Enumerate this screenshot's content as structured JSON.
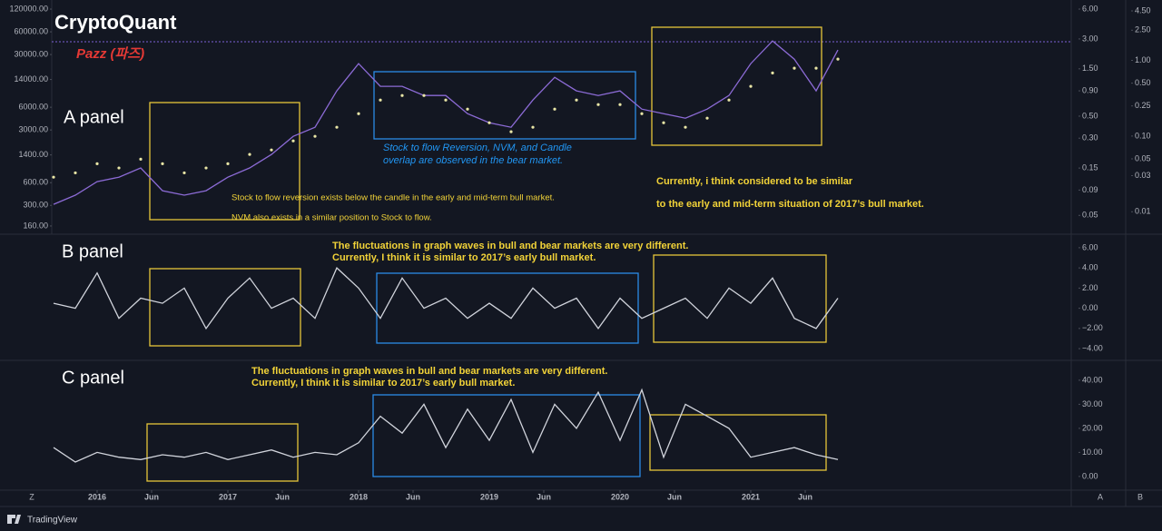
{
  "header": {
    "brand": "CryptoQuant",
    "author": "Pazz (파즈)"
  },
  "chart_data": [
    {
      "type": "line",
      "title": "A panel",
      "log_scale": true,
      "grid": false,
      "y_axis_position": "left",
      "x": [
        "2015-09",
        "2015-11",
        "2016-01",
        "2016-03",
        "2016-05",
        "2016-07",
        "2016-09",
        "2016-11",
        "2017-01",
        "2017-03",
        "2017-05",
        "2017-07",
        "2017-09",
        "2017-11",
        "2018-01",
        "2018-03",
        "2018-05",
        "2018-07",
        "2018-09",
        "2018-11",
        "2019-01",
        "2019-03",
        "2019-05",
        "2019-07",
        "2019-09",
        "2019-11",
        "2020-01",
        "2020-03",
        "2020-05",
        "2020-07",
        "2020-09",
        "2020-11",
        "2021-01",
        "2021-03",
        "2021-05",
        "2021-07",
        "2021-09"
      ],
      "xlim": [
        "2015-09",
        "2023-06"
      ],
      "series": [
        {
          "color": "#8c6bd6",
          "style": "line",
          "values": [
            310,
            410,
            620,
            710,
            940,
            470,
            410,
            470,
            710,
            940,
            1420,
            2470,
            3260,
            9890,
            22700,
            11350,
            11350,
            8590,
            8590,
            4930,
            3740,
            3260,
            7480,
            14960,
            9890,
            8590,
            9890,
            5670,
            4930,
            4300,
            5670,
            8590,
            22700,
            45400,
            26060,
            9890,
            34400
          ]
        },
        {
          "color": "#e9e6a6",
          "style": "dots",
          "values": [
            710,
            810,
            1070,
            940,
            1230,
            1070,
            810,
            940,
            1070,
            1420,
            1630,
            2150,
            2470,
            3260,
            4930,
            7480,
            8590,
            8590,
            7480,
            5670,
            3740,
            2840,
            3260,
            5670,
            7480,
            6510,
            6510,
            4930,
            3740,
            3260,
            4300,
            7480,
            11350,
            17100,
            19750,
            19750,
            26060
          ]
        }
      ],
      "ylim": [
        128,
        138000
      ],
      "yticks": [
        {
          "value": 120000,
          "label": "120000.00"
        },
        {
          "value": 60000,
          "label": "60000.00"
        },
        {
          "value": 30000,
          "label": "30000.00"
        },
        {
          "value": 14000,
          "label": "14000.00"
        },
        {
          "value": 6000,
          "label": "6000.00"
        },
        {
          "value": 3000,
          "label": "3000.00"
        },
        {
          "value": 1400,
          "label": "1400.00"
        },
        {
          "value": 600,
          "label": "600.00"
        },
        {
          "value": 300,
          "label": "300.00"
        },
        {
          "value": 160,
          "label": "160.00"
        }
      ],
      "y2lim": [
        0.033,
        6.67
      ],
      "y2ticks": [
        {
          "value": 6,
          "label": "6.00"
        },
        {
          "value": 3,
          "label": "3.00"
        },
        {
          "value": 1.5,
          "label": "1.50"
        },
        {
          "value": 0.9,
          "label": "0.90"
        },
        {
          "value": 0.5,
          "label": "0.50"
        },
        {
          "value": 0.3,
          "label": "0.30"
        },
        {
          "value": 0.15,
          "label": "0.15"
        },
        {
          "value": 0.09,
          "label": "0.09"
        },
        {
          "value": 0.05,
          "label": "0.05"
        }
      ],
      "y3lim": [
        0.0052,
        5.46
      ],
      "y3ticks": [
        {
          "value": 4.5,
          "label": "4.50"
        },
        {
          "value": 2.5,
          "label": "2.50"
        },
        {
          "value": 1,
          "label": "1.00"
        },
        {
          "value": 0.5,
          "label": "0.50"
        },
        {
          "value": 0.25,
          "label": "0.25"
        },
        {
          "value": 0.1,
          "label": "0.10"
        },
        {
          "value": 0.05,
          "label": "0.05"
        },
        {
          "value": 0.03,
          "label": "0.03"
        },
        {
          "value": 0.01,
          "label": "0.01"
        }
      ]
    },
    {
      "type": "line",
      "title": "B panel",
      "log_scale": false,
      "grid": false,
      "y_axis_position": "right",
      "x": [
        "2015-09",
        "2015-11",
        "2016-01",
        "2016-03",
        "2016-05",
        "2016-07",
        "2016-09",
        "2016-11",
        "2017-01",
        "2017-03",
        "2017-05",
        "2017-07",
        "2017-09",
        "2017-11",
        "2018-01",
        "2018-03",
        "2018-05",
        "2018-07",
        "2018-09",
        "2018-11",
        "2019-01",
        "2019-03",
        "2019-05",
        "2019-07",
        "2019-09",
        "2019-11",
        "2020-01",
        "2020-03",
        "2020-05",
        "2020-07",
        "2020-09",
        "2020-11",
        "2021-01",
        "2021-03",
        "2021-05",
        "2021-07",
        "2021-09"
      ],
      "xlim": [
        "2015-09",
        "2023-06"
      ],
      "series": [
        {
          "color": "#d1d4dc",
          "style": "line",
          "values": [
            0.5,
            0,
            3.5,
            -1,
            1,
            0.5,
            2,
            -2,
            1,
            3,
            0,
            1,
            -1,
            4,
            2,
            -1,
            3,
            0,
            1,
            -1,
            0.5,
            -1,
            2,
            0,
            1,
            -2,
            1,
            -1,
            0,
            1,
            -1,
            2,
            0.5,
            3,
            -1,
            -2,
            1
          ]
        }
      ],
      "ylim": [
        -5.16,
        7.34
      ],
      "yticks": [
        {
          "value": 6,
          "label": "6.00"
        },
        {
          "value": 4,
          "label": "4.00"
        },
        {
          "value": 2,
          "label": "2.00"
        },
        {
          "value": 0,
          "label": "0.00"
        },
        {
          "value": -2,
          "label": "−2.00"
        },
        {
          "value": -4,
          "label": "−4.00"
        }
      ]
    },
    {
      "type": "line",
      "title": "C panel",
      "log_scale": false,
      "grid": false,
      "y_axis_position": "right",
      "x": [
        "2015-09",
        "2015-11",
        "2016-01",
        "2016-03",
        "2016-05",
        "2016-07",
        "2016-09",
        "2016-11",
        "2017-01",
        "2017-03",
        "2017-05",
        "2017-07",
        "2017-09",
        "2017-11",
        "2018-01",
        "2018-03",
        "2018-05",
        "2018-07",
        "2018-09",
        "2018-11",
        "2019-01",
        "2019-03",
        "2019-05",
        "2019-07",
        "2019-09",
        "2019-11",
        "2020-01",
        "2020-03",
        "2020-05",
        "2020-07",
        "2020-09",
        "2020-11",
        "2021-01",
        "2021-03",
        "2021-05",
        "2021-07",
        "2021-09"
      ],
      "xlim": [
        "2015-09",
        "2023-06"
      ],
      "xticks": [
        {
          "value": "2016-01",
          "label": "2016"
        },
        {
          "value": "2016-06",
          "label": "Jun"
        },
        {
          "value": "2017-01",
          "label": "2017"
        },
        {
          "value": "2017-06",
          "label": "Jun"
        },
        {
          "value": "2018-01",
          "label": "2018"
        },
        {
          "value": "2018-06",
          "label": "Jun"
        },
        {
          "value": "2019-01",
          "label": "2019"
        },
        {
          "value": "2019-06",
          "label": "Jun"
        },
        {
          "value": "2020-01",
          "label": "2020"
        },
        {
          "value": "2020-06",
          "label": "Jun"
        },
        {
          "value": "2021-01",
          "label": "2021"
        },
        {
          "value": "2021-06",
          "label": "Jun"
        }
      ],
      "series": [
        {
          "color": "#d1d4dc",
          "style": "line",
          "values": [
            12,
            6,
            10,
            8,
            7,
            9,
            8,
            10,
            7,
            9,
            11,
            8,
            10,
            9,
            14,
            25,
            18,
            30,
            12,
            28,
            15,
            32,
            10,
            30,
            20,
            35,
            15,
            36,
            8,
            30,
            25,
            20,
            8,
            10,
            12,
            9,
            7
          ]
        }
      ],
      "ylim": [
        -5.7,
        47.5
      ],
      "yticks": [
        {
          "value": 40,
          "label": "40.00"
        },
        {
          "value": 30,
          "label": "30.00"
        },
        {
          "value": 20,
          "label": "20.00"
        },
        {
          "value": 10,
          "label": "10.00"
        },
        {
          "value": 0,
          "label": "0.00"
        }
      ]
    }
  ],
  "annotations": [
    {
      "lines": [
        "Stock to flow Reversion, NVM, and Candle",
        "overlap are observed in the bear market."
      ]
    },
    {
      "lines": [
        "Stock to flow reversion exists below the candle in the early and mid-term bull market.",
        "NVM also exists in a similar position to Stock to flow."
      ]
    },
    {
      "lines": [
        "Currently, i think considered to be similar",
        "to the early and mid-term situation of 2017’s bull market."
      ]
    },
    {
      "lines": [
        "The fluctuations in graph waves in bull and bear markets are very different.",
        "Currently, I think it is similar to 2017’s early bull market."
      ]
    },
    {
      "lines": [
        "The fluctuations in graph waves in bull and bear markets are very different.",
        "Currently, I think it is similar to 2017’s early bull market."
      ]
    }
  ],
  "footer": {
    "left_scale": "Z",
    "right_scales": [
      "A",
      "B"
    ],
    "platform": "TradingView"
  }
}
